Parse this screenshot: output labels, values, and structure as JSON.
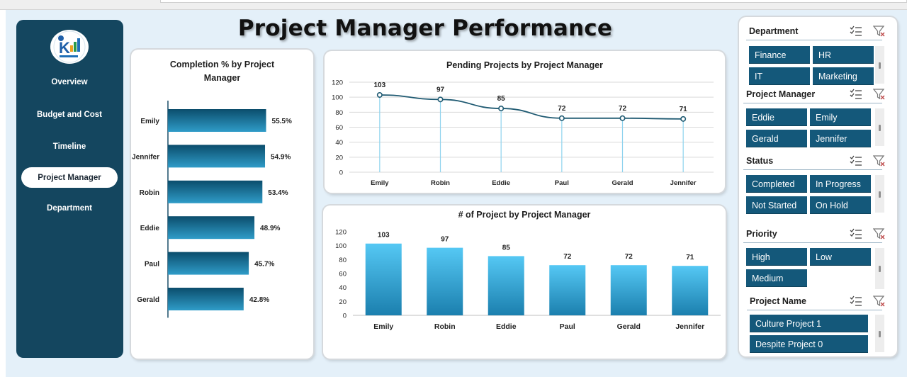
{
  "page_title": "Project Manager Performance",
  "sidebar": {
    "logo": "dashboard-logo",
    "items": [
      {
        "label": "Overview",
        "active": false
      },
      {
        "label": "Budget and Cost",
        "active": false
      },
      {
        "label": "Timeline",
        "active": false
      },
      {
        "label": "Project Manager",
        "active": true
      },
      {
        "label": "Department",
        "active": false
      }
    ]
  },
  "colors": {
    "sidebar": "#14465f",
    "accent": "#14587a",
    "bar_dark": "#0e5576",
    "bar_light": "#58c6f2",
    "line": "#1f5a72",
    "page_bg": "#e4f0f9"
  },
  "chart_data": [
    {
      "id": "completion",
      "type": "bar",
      "orientation": "horizontal",
      "title": "Completion % by Project Manager",
      "categories": [
        "Emily",
        "Jennifer",
        "Robin",
        "Eddie",
        "Paul",
        "Gerald"
      ],
      "values": [
        55.5,
        54.9,
        53.4,
        48.9,
        45.7,
        42.8
      ],
      "data_labels": [
        "55.5%",
        "54.9%",
        "53.4%",
        "48.9%",
        "45.7%",
        "42.8%"
      ],
      "xlim": [
        0,
        60
      ],
      "grid": false
    },
    {
      "id": "pending",
      "type": "line",
      "title": "Pending Projects by Project Manager",
      "categories": [
        "Emily",
        "Robin",
        "Eddie",
        "Paul",
        "Gerald",
        "Jennifer"
      ],
      "values": [
        103,
        97,
        85,
        72,
        72,
        71
      ],
      "ylim": [
        0,
        120
      ],
      "yticks": [
        0,
        20,
        40,
        60,
        80,
        100,
        120
      ],
      "grid": true
    },
    {
      "id": "count",
      "type": "bar",
      "title": "# of Project  by Project Manager",
      "categories": [
        "Emily",
        "Robin",
        "Eddie",
        "Paul",
        "Gerald",
        "Jennifer"
      ],
      "values": [
        103,
        97,
        85,
        72,
        72,
        71
      ],
      "ylim": [
        0,
        120
      ],
      "yticks": [
        0,
        20,
        40,
        60,
        80,
        100,
        120
      ],
      "grid": false
    }
  ],
  "slicers": [
    {
      "title": "Department",
      "items": [
        "Finance",
        "HR",
        "IT",
        "Marketing"
      ]
    },
    {
      "title": "Project Manager",
      "items": [
        "Eddie",
        "Emily",
        "Gerald",
        "Jennifer"
      ]
    },
    {
      "title": "Status",
      "items": [
        "Completed",
        "In Progress",
        "Not Started",
        "On Hold"
      ]
    },
    {
      "title": "Priority",
      "items": [
        "High",
        "Low",
        "Medium"
      ]
    },
    {
      "title": "Project Name",
      "items": [
        "Culture Project 1",
        "Despite Project 0"
      ]
    }
  ],
  "slicer_icons": {
    "multi_select": "multi-select-icon",
    "clear_filter": "clear-filter-icon"
  }
}
